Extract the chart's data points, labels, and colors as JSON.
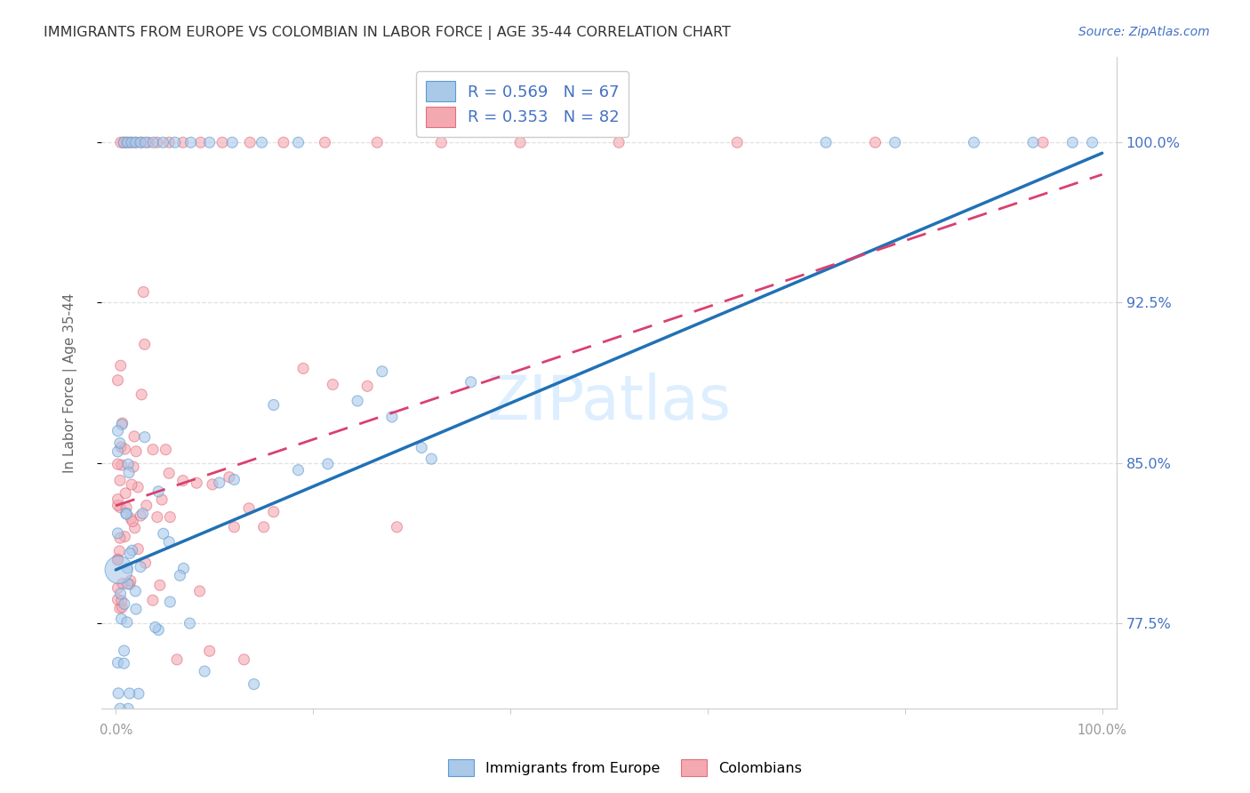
{
  "title": "IMMIGRANTS FROM EUROPE VS COLOMBIAN IN LABOR FORCE | AGE 35-44 CORRELATION CHART",
  "source": "Source: ZipAtlas.com",
  "ylabel": "In Labor Force | Age 35-44",
  "series1_label": "Immigrants from Europe",
  "series2_label": "Colombians",
  "blue_face_color": "#aac8e8",
  "blue_edge_color": "#5b9bd5",
  "pink_face_color": "#f4a8b0",
  "pink_edge_color": "#e07080",
  "blue_line_color": "#2171b5",
  "pink_line_color": "#d94070",
  "right_axis_color": "#4472c4",
  "grid_color": "#e0e0e0",
  "title_color": "#333333",
  "label_color": "#666666",
  "watermark_color": "#ddeeff",
  "yticks": [
    0.775,
    0.85,
    0.925,
    1.0
  ],
  "ytick_labels": [
    "77.5%",
    "85.0%",
    "92.5%",
    "100.0%"
  ],
  "ylim": [
    0.735,
    1.04
  ],
  "xlim": [
    -0.015,
    1.015
  ],
  "blue_slope": 0.195,
  "blue_intercept": 0.8,
  "pink_slope": 0.155,
  "pink_intercept": 0.83,
  "legend_text_color": "#4472c4",
  "legend_line1": "R = 0.569   N = 67",
  "legend_line2": "R = 0.353   N = 82"
}
